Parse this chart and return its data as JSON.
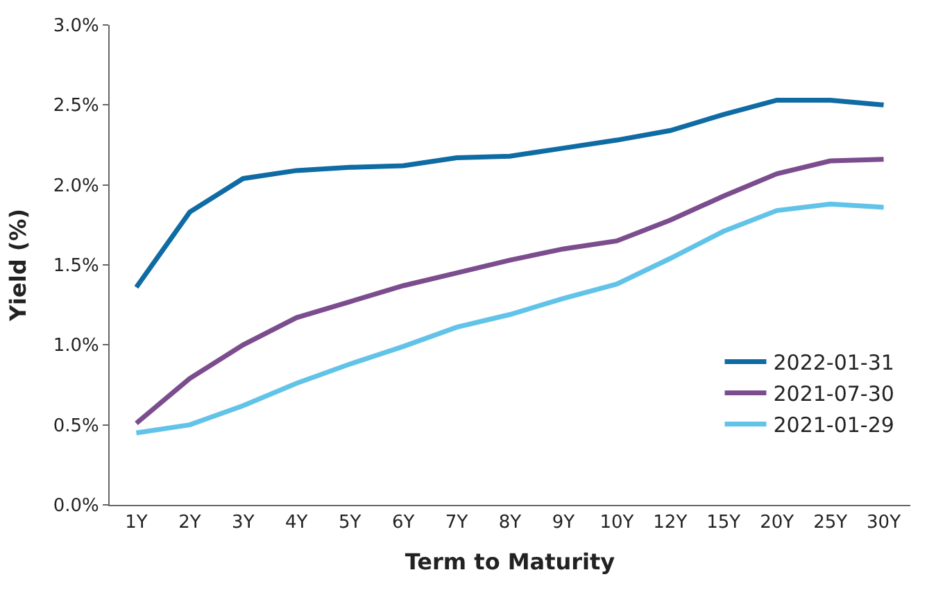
{
  "chart_data": {
    "type": "line",
    "xlabel": "Term to Maturity",
    "ylabel": "Yield (%)",
    "categories": [
      "1Y",
      "2Y",
      "3Y",
      "4Y",
      "5Y",
      "6Y",
      "7Y",
      "8Y",
      "9Y",
      "10Y",
      "12Y",
      "15Y",
      "20Y",
      "25Y",
      "30Y"
    ],
    "series": [
      {
        "name": "2022-01-31",
        "color": "#0f6ba3",
        "values": [
          1.36,
          1.83,
          2.04,
          2.09,
          2.11,
          2.12,
          2.17,
          2.18,
          2.23,
          2.28,
          2.34,
          2.44,
          2.53,
          2.53,
          2.5
        ]
      },
      {
        "name": "2021-07-30",
        "color": "#7b4d8e",
        "values": [
          0.51,
          0.79,
          1.0,
          1.17,
          1.27,
          1.37,
          1.45,
          1.53,
          1.6,
          1.65,
          1.78,
          1.93,
          2.07,
          2.15,
          2.16
        ]
      },
      {
        "name": "2021-01-29",
        "color": "#62c3e8",
        "values": [
          0.45,
          0.5,
          0.62,
          0.76,
          0.88,
          0.99,
          1.11,
          1.19,
          1.29,
          1.38,
          1.54,
          1.71,
          1.84,
          1.88,
          1.86
        ]
      }
    ],
    "ylim": [
      0,
      3.0
    ],
    "yticks": [
      {
        "value": 0,
        "label": "0.0%"
      },
      {
        "value": 0.5,
        "label": "0.5%"
      },
      {
        "value": 1.0,
        "label": "1.0%"
      },
      {
        "value": 1.5,
        "label": "1.5%"
      },
      {
        "value": 2.0,
        "label": "2.0%"
      },
      {
        "value": 2.5,
        "label": "2.5%"
      },
      {
        "value": 3.0,
        "label": "3.0%"
      }
    ],
    "legend": "bottom right",
    "marker": "none",
    "line_style": "solid"
  }
}
